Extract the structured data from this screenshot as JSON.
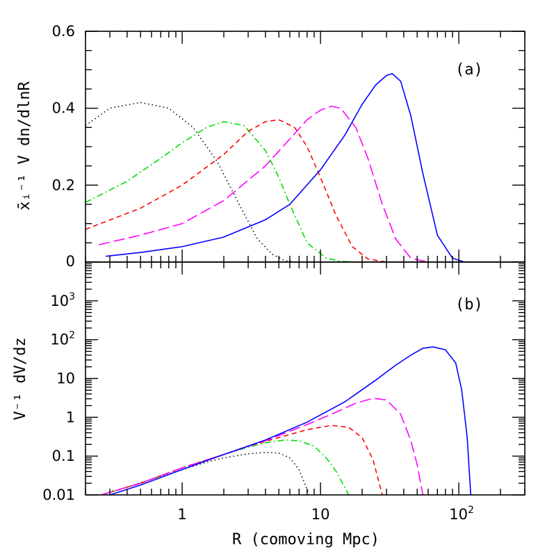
{
  "figure": {
    "xlabel": "R (comoving Mpc)",
    "xticks": [
      {
        "value": 1,
        "label": "1",
        "sup": ""
      },
      {
        "value": 10,
        "label": "10",
        "sup": ""
      },
      {
        "value": 100,
        "label": "10",
        "sup": "2"
      }
    ]
  },
  "chart_data": [
    {
      "type": "line",
      "panel_label": "(a)",
      "ylabel": "x̄ᵢ⁻¹ V dn/dlnR",
      "xscale": "log",
      "xlim": [
        0.2,
        300
      ],
      "ylim": [
        0,
        0.6
      ],
      "yticks": [
        {
          "value": 0,
          "label": "0"
        },
        {
          "value": 0.2,
          "label": "0.2"
        },
        {
          "value": 0.4,
          "label": "0.4"
        },
        {
          "value": 0.6,
          "label": "0.6"
        }
      ],
      "grid": false,
      "series": [
        {
          "color": "#000000",
          "dash": "1.5 4",
          "x": [
            0.2,
            0.3,
            0.5,
            0.8,
            1.2,
            1.8,
            2.5,
            3.5,
            4.5,
            5.5,
            6.5
          ],
          "y": [
            0.355,
            0.4,
            0.415,
            0.4,
            0.35,
            0.26,
            0.16,
            0.06,
            0.02,
            0.004,
            0
          ]
        },
        {
          "color": "#00dd00",
          "dash": "9 4 2 4",
          "x": [
            0.2,
            0.4,
            0.7,
            1.0,
            1.5,
            2.0,
            2.8,
            4.0,
            5.0,
            6.0,
            8.0,
            11.0,
            14.0,
            18.0
          ],
          "y": [
            0.155,
            0.21,
            0.27,
            0.31,
            0.35,
            0.365,
            0.355,
            0.29,
            0.22,
            0.15,
            0.05,
            0.01,
            0.002,
            0
          ]
        },
        {
          "color": "#ff0000",
          "dash": "7 5",
          "x": [
            0.2,
            0.5,
            1.0,
            2.0,
            3.0,
            4.0,
            5.0,
            6.5,
            8.0,
            10.0,
            13.0,
            17.0,
            22.0,
            30.0
          ],
          "y": [
            0.085,
            0.14,
            0.2,
            0.28,
            0.34,
            0.365,
            0.37,
            0.35,
            0.3,
            0.22,
            0.12,
            0.04,
            0.008,
            0
          ]
        },
        {
          "color": "#ff00ff",
          "dash": "16 6",
          "x": [
            0.25,
            0.5,
            1.0,
            2.0,
            4.0,
            6.0,
            8.0,
            10.0,
            12.0,
            14.0,
            18.0,
            22.0,
            28.0,
            35.0,
            45.0,
            60.0
          ],
          "y": [
            0.045,
            0.07,
            0.1,
            0.16,
            0.25,
            0.32,
            0.37,
            0.395,
            0.405,
            0.4,
            0.35,
            0.27,
            0.15,
            0.06,
            0.01,
            0
          ]
        },
        {
          "color": "#0000ff",
          "dash": "",
          "x": [
            0.28,
            0.5,
            1.0,
            2.0,
            4.0,
            6.0,
            10.0,
            15.0,
            20.0,
            25.0,
            30.0,
            33.0,
            38.0,
            45.0,
            55.0,
            70.0,
            90.0,
            110.0,
            200.0
          ],
          "y": [
            0.015,
            0.025,
            0.04,
            0.065,
            0.11,
            0.15,
            0.24,
            0.33,
            0.41,
            0.46,
            0.485,
            0.49,
            0.47,
            0.38,
            0.23,
            0.07,
            0.01,
            0,
            0
          ]
        }
      ]
    },
    {
      "type": "line",
      "panel_label": "(b)",
      "ylabel": "V⁻¹ dV/dz",
      "xscale": "log",
      "yscale": "log",
      "xlim": [
        0.2,
        300
      ],
      "ylim": [
        0.01,
        10000
      ],
      "yticks": [
        {
          "value": 0.01,
          "label": "0.01",
          "sup": ""
        },
        {
          "value": 0.1,
          "label": "0.1",
          "sup": ""
        },
        {
          "value": 1,
          "label": "1",
          "sup": ""
        },
        {
          "value": 10,
          "label": "10",
          "sup": ""
        },
        {
          "value": 100,
          "label": "10",
          "sup": "2"
        },
        {
          "value": 1000,
          "label": "10",
          "sup": "3"
        }
      ],
      "grid": false,
      "series": [
        {
          "color": "#000000",
          "dash": "1.5 4",
          "x": [
            0.26,
            0.4,
            0.7,
            1.0,
            1.5,
            2.0,
            3.0,
            4.0,
            5.0,
            6.0,
            7.0,
            8.3
          ],
          "y": [
            0.01,
            0.016,
            0.03,
            0.045,
            0.07,
            0.09,
            0.115,
            0.125,
            0.12,
            0.09,
            0.045,
            0.01
          ]
        },
        {
          "color": "#00dd00",
          "dash": "9 4 2 4",
          "x": [
            0.26,
            0.5,
            1.0,
            2.0,
            3.0,
            4.0,
            5.5,
            7.0,
            9.0,
            11.0,
            13.0,
            16.0
          ],
          "y": [
            0.01,
            0.02,
            0.05,
            0.11,
            0.17,
            0.22,
            0.26,
            0.25,
            0.18,
            0.09,
            0.04,
            0.01
          ]
        },
        {
          "color": "#ff0000",
          "dash": "7 5",
          "x": [
            0.26,
            0.5,
            1.0,
            2.0,
            3.0,
            5.0,
            8.0,
            12.0,
            16.0,
            20.0,
            24.0,
            28.0
          ],
          "y": [
            0.01,
            0.02,
            0.05,
            0.11,
            0.18,
            0.3,
            0.48,
            0.62,
            0.55,
            0.3,
            0.08,
            0.01
          ]
        },
        {
          "color": "#ff00ff",
          "dash": "16 6",
          "x": [
            0.26,
            0.5,
            1.0,
            2.0,
            4.0,
            8.0,
            12.0,
            18.0,
            24.0,
            30.0,
            38.0,
            45.0,
            50.0,
            55.0
          ],
          "y": [
            0.01,
            0.02,
            0.05,
            0.11,
            0.25,
            0.65,
            1.2,
            2.3,
            3.1,
            2.8,
            1.2,
            0.25,
            0.06,
            0.01
          ]
        },
        {
          "color": "#0000ff",
          "dash": "",
          "x": [
            0.3,
            0.5,
            1.0,
            2.0,
            4.0,
            8.0,
            15.0,
            25.0,
            35.0,
            45.0,
            55.0,
            65.0,
            80.0,
            95.0,
            105.0,
            115.0,
            122.0
          ],
          "y": [
            0.01,
            0.018,
            0.045,
            0.11,
            0.26,
            0.75,
            2.5,
            9.0,
            22.0,
            40.0,
            60.0,
            65.0,
            55.0,
            25.0,
            5.0,
            0.3,
            0.01
          ]
        }
      ]
    }
  ]
}
